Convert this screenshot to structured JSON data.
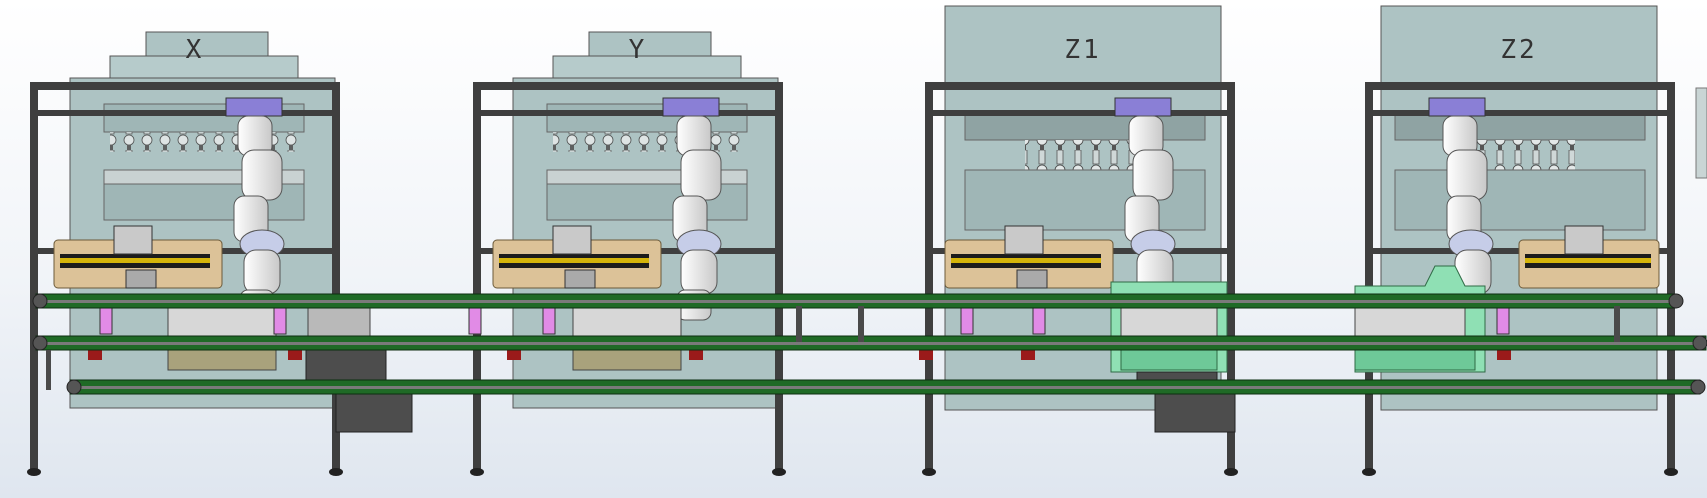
{
  "stations": [
    {
      "label": "X"
    },
    {
      "label": "Y"
    },
    {
      "label": "Z1"
    },
    {
      "label": "Z2"
    }
  ],
  "colors": {
    "cabinet": "#adc3c3",
    "frame": "#3f3f3f",
    "conveyor_belt": "#1f6a26",
    "fixture_tan": "#dcc298",
    "robot_white": "#eeeeee",
    "robot_base": "#8a7fd6",
    "pallet_green": "#8fe0b4"
  },
  "icons": [
    "robot-arm-icon",
    "conveyor-icon",
    "fixture-icon",
    "pallet-icon"
  ]
}
